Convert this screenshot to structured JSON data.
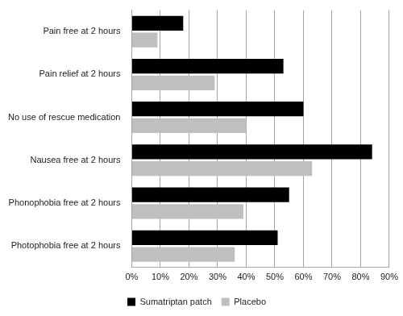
{
  "chart_data": {
    "type": "bar",
    "orientation": "horizontal",
    "categories": [
      "Pain free at 2 hours",
      "Pain relief at 2 hours",
      "No use of rescue medication",
      "Nausea free at 2 hours",
      "Phonophobia free at 2 hours",
      "Photophobia free at 2 hours"
    ],
    "series": [
      {
        "name": "Sumatriptan patch",
        "color": "#000000",
        "values": [
          18,
          53,
          60,
          84,
          55,
          51
        ]
      },
      {
        "name": "Placebo",
        "color": "#bfbfbf",
        "values": [
          9,
          29,
          40,
          63,
          39,
          36
        ]
      }
    ],
    "xlim": [
      0,
      90
    ],
    "xticks": [
      {
        "value": 0,
        "label": "0%"
      },
      {
        "value": 10,
        "label": "10%"
      },
      {
        "value": 20,
        "label": "20%"
      },
      {
        "value": 30,
        "label": "30%"
      },
      {
        "value": 40,
        "label": "40%"
      },
      {
        "value": 50,
        "label": "50%"
      },
      {
        "value": 60,
        "label": "60%"
      },
      {
        "value": 70,
        "label": "70%"
      },
      {
        "value": 80,
        "label": "80%"
      },
      {
        "value": 90,
        "label": "90%"
      }
    ],
    "grid": true,
    "legend": "bottom"
  }
}
